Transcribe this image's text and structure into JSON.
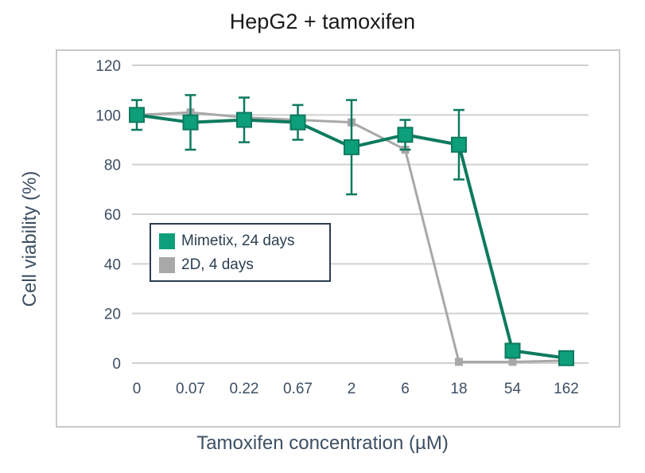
{
  "chart_data": {
    "type": "line",
    "title": "HepG2 + tamoxifen",
    "xlabel": "Tamoxifen concentration (µM)",
    "ylabel": "Cell viability (%)",
    "categories": [
      "0",
      "0.07",
      "0.22",
      "0.67",
      "2",
      "6",
      "18",
      "54",
      "162"
    ],
    "y_ticks": [
      "0",
      "20",
      "40",
      "60",
      "80",
      "100",
      "120"
    ],
    "ylim": [
      0,
      120
    ],
    "grid": "horizontal",
    "legend_position": "center-left",
    "series": [
      {
        "name": "2D, 4 days",
        "color": "#a8a8a8",
        "values": [
          100,
          101,
          99,
          98,
          97,
          86,
          0.5,
          0.5,
          1
        ],
        "errors": [
          0,
          0,
          0,
          0,
          0,
          0,
          0,
          0,
          0
        ]
      },
      {
        "name": "Mimetix, 24 days",
        "color": "#0d7a5f",
        "values": [
          100,
          97,
          98,
          97,
          87,
          92,
          88,
          5,
          2
        ],
        "errors": [
          6,
          11,
          9,
          7,
          19,
          6,
          14,
          1,
          1
        ]
      }
    ]
  }
}
